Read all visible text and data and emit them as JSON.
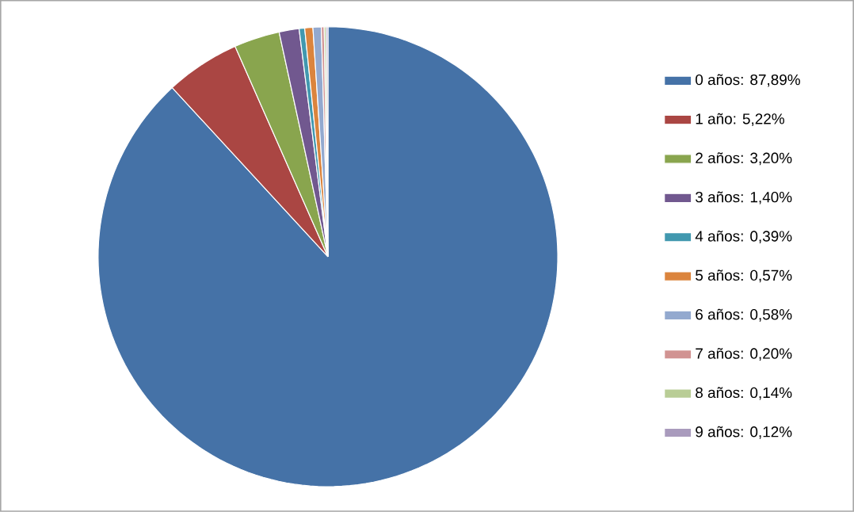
{
  "chart_data": {
    "type": "pie",
    "categories": [
      "0 años: 87,89%",
      "1 año: 5,22%",
      "2 años: 3,20%",
      "3 años: 1,40%",
      "4 años: 0,39%",
      "5 años: 0,57%",
      "6 años: 0,58%",
      "7 años: 0,20%",
      "8 años: 0,14%",
      "9 años: 0,12%"
    ],
    "values": [
      87.89,
      5.22,
      3.2,
      1.4,
      0.39,
      0.57,
      0.58,
      0.2,
      0.14,
      0.12
    ],
    "colors": [
      "#4572a7",
      "#aa4643",
      "#89a54e",
      "#71588f",
      "#4198af",
      "#db843d",
      "#93a9cf",
      "#d19392",
      "#b9cd96",
      "#a99bbd"
    ],
    "legend": "right"
  }
}
